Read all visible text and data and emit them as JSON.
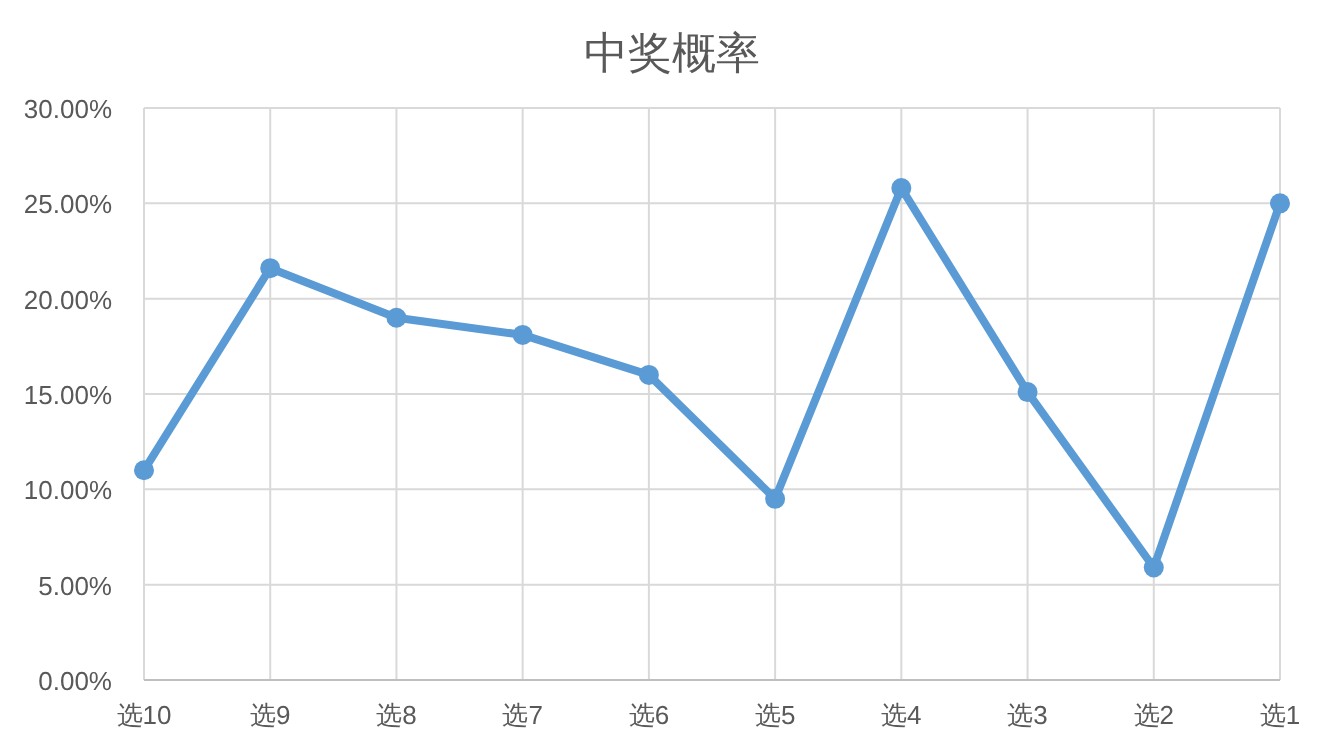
{
  "chart_data": {
    "type": "line",
    "title": "中奖概率",
    "categories": [
      "选10",
      "选9",
      "选8",
      "选7",
      "选6",
      "选5",
      "选4",
      "选3",
      "选2",
      "选1"
    ],
    "series": [
      {
        "color": "#5b9bd5",
        "values": [
          11.0,
          21.6,
          19.0,
          18.1,
          16.0,
          9.5,
          25.8,
          15.1,
          5.9,
          25.0
        ]
      }
    ],
    "ylim": [
      0,
      30
    ],
    "yticks": [
      {
        "value": 0,
        "label": "0.00%"
      },
      {
        "value": 5,
        "label": "5.00%"
      },
      {
        "value": 10,
        "label": "10.00%"
      },
      {
        "value": 15,
        "label": "15.00%"
      },
      {
        "value": 20,
        "label": "20.00%"
      },
      {
        "value": 25,
        "label": "25.00%"
      },
      {
        "value": 30,
        "label": "30.00%"
      }
    ],
    "grid": true,
    "marker": "circle",
    "line_style": "solid"
  }
}
